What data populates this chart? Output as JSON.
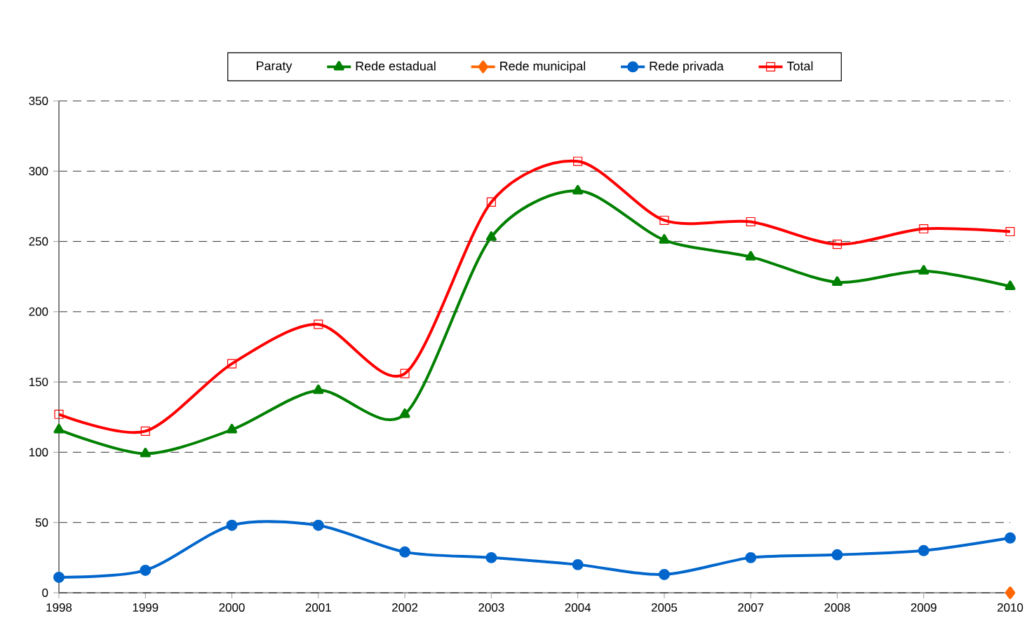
{
  "chart_data": {
    "type": "line",
    "legend_title": "Paraty",
    "categories": [
      "1998",
      "1999",
      "2000",
      "2001",
      "2002",
      "2003",
      "2004",
      "2005",
      "2007",
      "2008",
      "2009",
      "2010"
    ],
    "series": [
      {
        "name": "Rede estadual",
        "color": "#008000",
        "marker": "triangle",
        "values": [
          116,
          99,
          116,
          144,
          127,
          253,
          286,
          251,
          239,
          221,
          229,
          218
        ]
      },
      {
        "name": "Rede municipal",
        "color": "#ff6600",
        "marker": "diamond",
        "values": [
          null,
          null,
          null,
          null,
          null,
          null,
          null,
          null,
          null,
          null,
          null,
          0
        ]
      },
      {
        "name": "Rede privada",
        "color": "#0066cc",
        "marker": "circle",
        "values": [
          11,
          16,
          48,
          48,
          29,
          25,
          20,
          13,
          25,
          27,
          30,
          39
        ]
      },
      {
        "name": "Total",
        "color": "#ff0000",
        "marker": "square",
        "values": [
          127,
          115,
          163,
          191,
          156,
          278,
          307,
          265,
          264,
          248,
          259,
          257
        ]
      }
    ],
    "ylim": [
      0,
      350
    ],
    "yticks": [
      0,
      50,
      100,
      150,
      200,
      250,
      300,
      350
    ],
    "grid": "y",
    "legend": "top",
    "line_style": "solid"
  }
}
